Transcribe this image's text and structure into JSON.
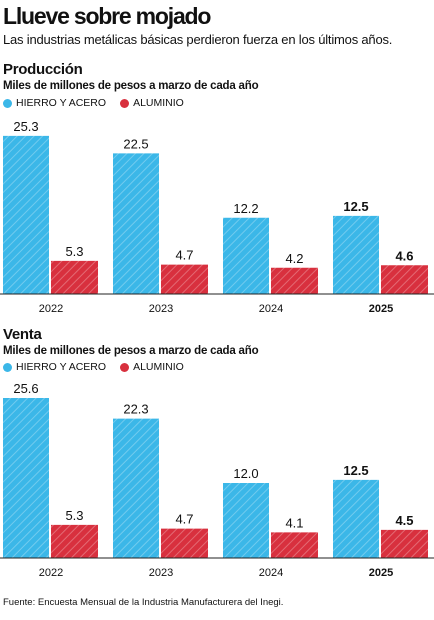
{
  "header": {
    "title": "Llueve sobre mojado",
    "subtitle": "Las industrias metálicas básicas perdieron fuerza en los últimos años."
  },
  "colors": {
    "hierro": "#3bb7e8",
    "aluminio": "#d8303e"
  },
  "chart_data": [
    {
      "type": "bar",
      "title": "Producción",
      "ylabel": "Miles de millones de pesos a marzo de cada año",
      "categories": [
        "2022",
        "2023",
        "2024",
        "2025"
      ],
      "series": [
        {
          "name": "HIERRO Y ACERO",
          "values": [
            25.3,
            22.5,
            12.2,
            12.5
          ]
        },
        {
          "name": "ALUMINIO",
          "values": [
            5.3,
            4.7,
            4.2,
            4.6
          ]
        }
      ],
      "value_labels": [
        [
          "25.3",
          "22.5",
          "12.2",
          "12.5"
        ],
        [
          "5.3",
          "4.7",
          "4.2",
          "4.6"
        ]
      ],
      "ylim": [
        0,
        25.6
      ],
      "highlight_category": "2025",
      "legend": "top-left",
      "grid": false
    },
    {
      "type": "bar",
      "title": "Venta",
      "ylabel": "Miles de millones de pesos a marzo de cada año",
      "categories": [
        "2022",
        "2023",
        "2024",
        "2025"
      ],
      "series": [
        {
          "name": "HIERRO Y ACERO",
          "values": [
            25.6,
            22.3,
            12.0,
            12.5
          ]
        },
        {
          "name": "ALUMINIO",
          "values": [
            5.3,
            4.7,
            4.1,
            4.5
          ]
        }
      ],
      "value_labels": [
        [
          "25.6",
          "22.3",
          "12.0",
          "12.5"
        ],
        [
          "5.3",
          "4.7",
          "4.1",
          "4.5"
        ]
      ],
      "ylim": [
        0,
        25.6
      ],
      "highlight_category": "2025",
      "legend": "top-left",
      "grid": false
    }
  ],
  "footer": {
    "source": "Fuente: Encuesta Mensual de la Industria Manufacturera del Inegi."
  }
}
